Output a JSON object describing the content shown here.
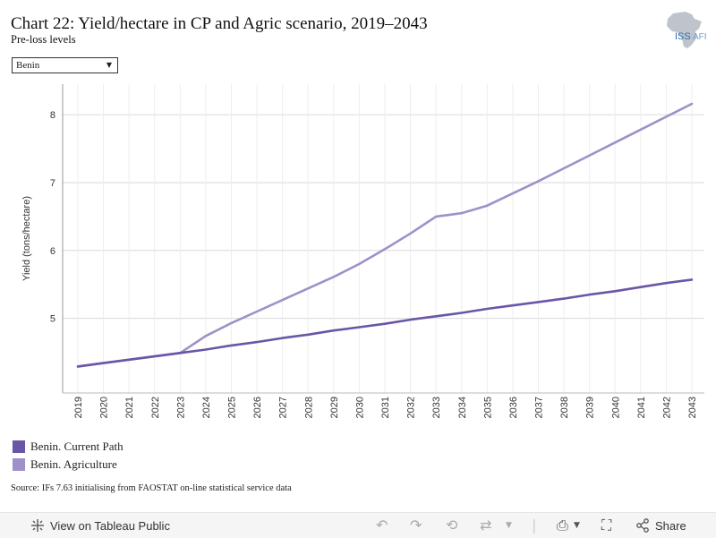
{
  "header": {
    "title": "Chart 22: Yield/hectare in CP and Agric scenario, 2019–2043",
    "subtitle": "Pre-loss levels",
    "logo_text": "ISS",
    "logo_text_suffix": "AFI"
  },
  "filter": {
    "selected": "Benin"
  },
  "chart_data": {
    "type": "line",
    "x": [
      2019,
      2020,
      2021,
      2022,
      2023,
      2024,
      2025,
      2026,
      2027,
      2028,
      2029,
      2030,
      2031,
      2032,
      2033,
      2034,
      2035,
      2036,
      2037,
      2038,
      2039,
      2040,
      2041,
      2042,
      2043
    ],
    "series": [
      {
        "name": "Benin. Current Path",
        "color": "#6a56a6",
        "values": [
          4.29,
          4.34,
          4.39,
          4.44,
          4.49,
          4.54,
          4.6,
          4.65,
          4.71,
          4.76,
          4.82,
          4.87,
          4.92,
          4.98,
          5.03,
          5.08,
          5.14,
          5.19,
          5.24,
          5.29,
          5.35,
          5.4,
          5.46,
          5.52,
          5.57
        ]
      },
      {
        "name": "Benin. Agriculture",
        "color": "#9f90c9",
        "values": [
          4.29,
          4.34,
          4.39,
          4.44,
          4.49,
          4.74,
          4.93,
          5.1,
          5.27,
          5.44,
          5.61,
          5.8,
          6.02,
          6.25,
          6.5,
          6.55,
          6.66,
          6.84,
          7.02,
          7.21,
          7.4,
          7.59,
          7.78,
          7.97,
          8.16
        ]
      }
    ],
    "ylabel": "Yield (tons/hectare)",
    "xlabel": "",
    "ylim": [
      3.9,
      8.45
    ],
    "yticks": [
      5,
      6,
      7,
      8
    ],
    "grid": true,
    "legend_position": "bottom-left"
  },
  "source": "Source: IFs 7.63 initialising from FAOSTAT on-line statistical service data",
  "footer": {
    "view_label": "View on Tableau Public",
    "share_label": "Share"
  }
}
